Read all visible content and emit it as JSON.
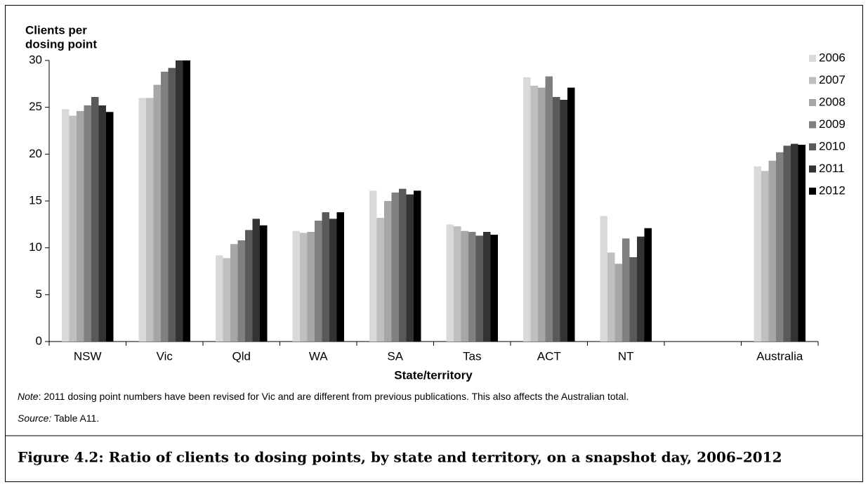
{
  "chart_data": {
    "type": "bar",
    "ylabel": [
      "Clients per",
      "dosing point"
    ],
    "xlabel": "State/territory",
    "categories": [
      "NSW",
      "Vic",
      "Qld",
      "WA",
      "SA",
      "Tas",
      "ACT",
      "NT",
      null,
      "Australia"
    ],
    "series": [
      {
        "name": "2006",
        "color": "#d9d9d9",
        "values": [
          24.8,
          26.0,
          9.2,
          11.8,
          16.1,
          12.5,
          28.2,
          13.4,
          null,
          18.7
        ]
      },
      {
        "name": "2007",
        "color": "#bfbfbf",
        "values": [
          24.1,
          26.0,
          8.9,
          11.6,
          13.2,
          12.3,
          27.3,
          9.5,
          null,
          18.2
        ]
      },
      {
        "name": "2008",
        "color": "#a6a6a6",
        "values": [
          24.6,
          27.4,
          10.4,
          11.7,
          15.0,
          11.8,
          27.1,
          8.3,
          null,
          19.3
        ]
      },
      {
        "name": "2009",
        "color": "#808080",
        "values": [
          25.2,
          28.8,
          10.8,
          12.9,
          15.9,
          11.7,
          28.3,
          11.0,
          null,
          20.2
        ]
      },
      {
        "name": "2010",
        "color": "#595959",
        "values": [
          26.1,
          29.2,
          11.9,
          13.8,
          16.3,
          11.3,
          26.1,
          9.0,
          null,
          20.9
        ]
      },
      {
        "name": "2011",
        "color": "#333333",
        "values": [
          25.2,
          30.0,
          13.1,
          13.1,
          15.7,
          11.7,
          25.8,
          11.2,
          null,
          21.1
        ]
      },
      {
        "name": "2012",
        "color": "#000000",
        "values": [
          24.5,
          30.0,
          12.4,
          13.8,
          16.1,
          11.4,
          27.1,
          12.1,
          null,
          21.0
        ]
      }
    ],
    "ylim": [
      0,
      30
    ],
    "yticks": [
      0,
      5,
      10,
      15,
      20,
      25,
      30
    ],
    "grid": false,
    "legend": "upper right",
    "note": {
      "label": "Note",
      "text": ": 2011 dosing point numbers have been revised for Vic and are different from previous publications. This also affects the Australian total."
    },
    "source": {
      "label": "Source:",
      "text": " Table A11."
    },
    "caption": "Figure 4.2: Ratio of clients to dosing points, by state and territory, on a snapshot day, 2006–2012"
  }
}
